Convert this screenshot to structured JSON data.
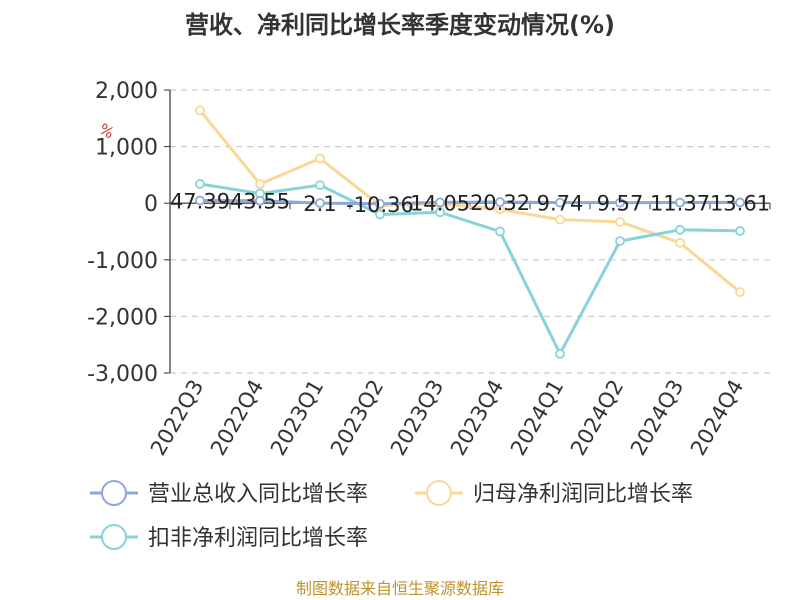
{
  "chart_data": {
    "type": "line",
    "title": "营收、净利同比增长率季度变动情况(%)",
    "ylabel": "%",
    "ylim": [
      -3000,
      2000
    ],
    "yticks": [
      2000,
      1000,
      0,
      -1000,
      -2000,
      -3000
    ],
    "ytick_labels": [
      "2,000",
      "1,000",
      "0",
      "-1,000",
      "-2,000",
      "-3,000"
    ],
    "grid": true,
    "legend_position": "bottom",
    "categories": [
      "2022Q3",
      "2022Q4",
      "2023Q1",
      "2023Q2",
      "2023Q3",
      "2023Q4",
      "2024Q1",
      "2024Q2",
      "2024Q3",
      "2024Q4"
    ],
    "series": [
      {
        "name": "营业总收入同比增长率",
        "color": "#8fa9d6",
        "values": [
          47.39,
          43.55,
          2.1,
          -10.36,
          14.05,
          20.32,
          9.74,
          9.57,
          11.37,
          13.61
        ],
        "labels": [
          "47.39",
          "43.55",
          "2.1",
          "-10.36",
          "14.05",
          "20.32",
          "9.74",
          "9.57",
          "11.37",
          "13.61"
        ]
      },
      {
        "name": "归母净利润同比增长率",
        "color": "#f9d896",
        "values": [
          1640,
          340,
          790,
          -40,
          -10,
          -110,
          -290,
          -330,
          -700,
          -1570
        ]
      },
      {
        "name": "扣非净利润同比增长率",
        "color": "#86d3d9",
        "values": [
          340,
          170,
          320,
          -200,
          -160,
          -500,
          -2660,
          -670,
          -470,
          -490
        ]
      }
    ],
    "source": "制图数据来自恒生聚源数据库"
  }
}
